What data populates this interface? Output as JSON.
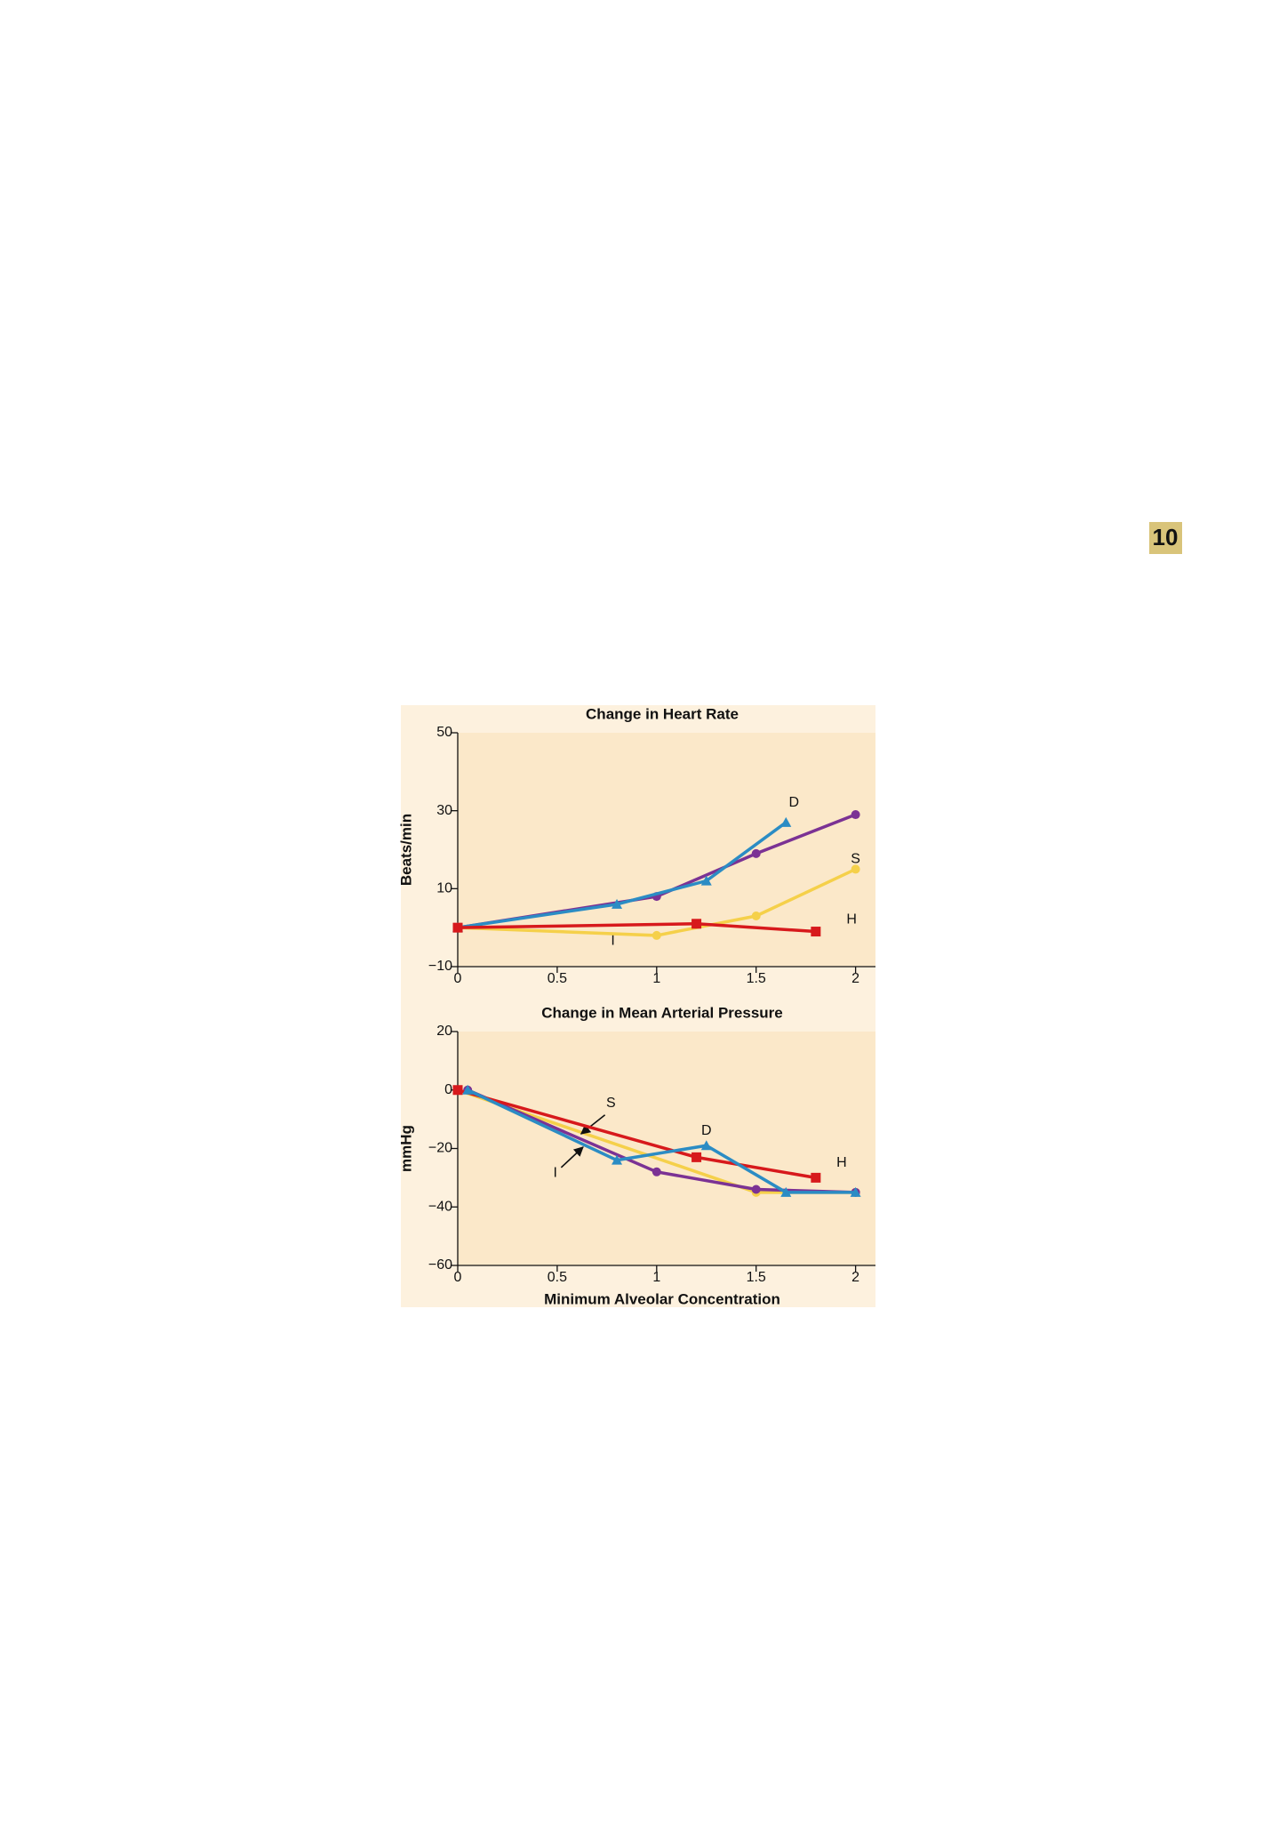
{
  "page_number": "10",
  "chart_data": [
    {
      "type": "line",
      "title": "Change in Heart Rate",
      "y_label": "Beats/min",
      "xlim": [
        0,
        2.1
      ],
      "xticks": [
        0,
        0.5,
        1,
        1.5,
        2
      ],
      "ylim": [
        -10,
        50
      ],
      "yticks": [
        {
          "value": -10,
          "label": "−10"
        },
        10,
        30,
        50
      ],
      "series": [
        {
          "name": "I",
          "color": "#7b3294",
          "marker": "circle",
          "x": [
            0,
            1,
            1.5,
            2
          ],
          "values": [
            0,
            8,
            19,
            29
          ]
        },
        {
          "name": "D",
          "color": "#2b8cc4",
          "marker": "triangle",
          "x": [
            0,
            0.8,
            1.25,
            1.65
          ],
          "values": [
            0,
            6,
            12,
            27
          ]
        },
        {
          "name": "S",
          "color": "#f5d04a",
          "marker": "circle",
          "x": [
            0,
            1,
            1.5,
            2
          ],
          "values": [
            0,
            -2,
            3,
            15
          ]
        },
        {
          "name": "H",
          "color": "#d7191c",
          "marker": "square",
          "x": [
            0,
            1.2,
            1.8
          ],
          "values": [
            0,
            1,
            -1
          ]
        }
      ]
    },
    {
      "type": "line",
      "title": "Change in Mean Arterial Pressure",
      "y_label": "mmHg",
      "x_label": "Minimum Alveolar Concentration",
      "xlim": [
        0,
        2.1
      ],
      "xticks": [
        0,
        0.5,
        1,
        1.5,
        2
      ],
      "ylim": [
        -60,
        20
      ],
      "yticks": [
        {
          "value": -60,
          "label": "−60"
        },
        {
          "value": -40,
          "label": "−40"
        },
        {
          "value": -20,
          "label": "−20"
        },
        0,
        20
      ],
      "series": [
        {
          "name": "S",
          "color": "#f5d04a",
          "marker": "circle",
          "x": [
            0,
            1.5,
            2
          ],
          "values": [
            0,
            -35,
            -35
          ]
        },
        {
          "name": "I",
          "color": "#7b3294",
          "marker": "circle",
          "x": [
            0.05,
            1,
            1.5,
            2
          ],
          "values": [
            0,
            -28,
            -34,
            -35
          ]
        },
        {
          "name": "H",
          "color": "#d7191c",
          "marker": "square",
          "x": [
            0,
            1.2,
            1.8
          ],
          "values": [
            0,
            -23,
            -30
          ]
        },
        {
          "name": "D",
          "color": "#2b8cc4",
          "marker": "triangle",
          "x": [
            0.05,
            0.8,
            1.25,
            1.65,
            2
          ],
          "values": [
            0,
            -24,
            -19,
            -35,
            -35
          ]
        }
      ]
    }
  ]
}
